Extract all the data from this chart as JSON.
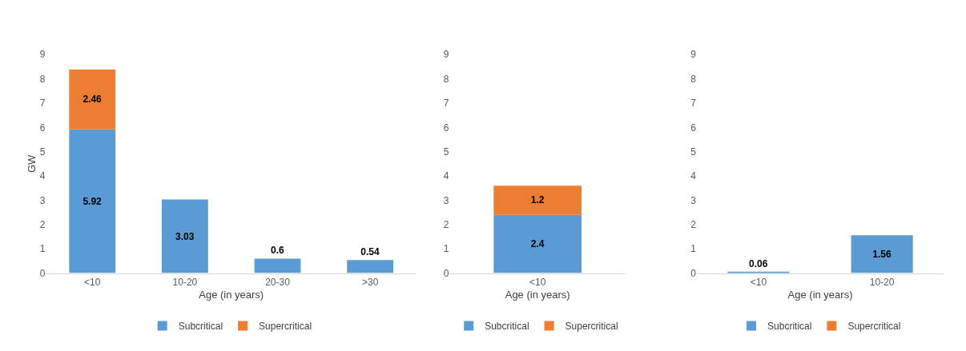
{
  "chart_data": [
    {
      "type": "bar",
      "stacked": true,
      "categories": [
        "<10",
        "10-20",
        "20-30",
        ">30"
      ],
      "xlabel": "Age (in years)",
      "ylabel": "GW",
      "ylim": [
        0,
        9
      ],
      "yticks": [
        0,
        1,
        2,
        3,
        4,
        5,
        6,
        7,
        8,
        9
      ],
      "data_labels": true,
      "legend": "bottom",
      "series": [
        {
          "name": "Subcritical",
          "color": "#5b9bd5",
          "values": [
            5.92,
            3.03,
            0.6,
            0.54
          ]
        },
        {
          "name": "Supercritical",
          "color": "#ed7d31",
          "values": [
            2.46,
            null,
            null,
            null
          ]
        }
      ]
    },
    {
      "type": "bar",
      "stacked": true,
      "categories": [
        "<10"
      ],
      "xlabel": "Age (in years)",
      "ylim": [
        0,
        9
      ],
      "yticks": [
        0,
        1,
        2,
        3,
        4,
        5,
        6,
        7,
        8,
        9
      ],
      "data_labels": true,
      "legend": "bottom",
      "series": [
        {
          "name": "Subcritical",
          "color": "#5b9bd5",
          "values": [
            2.4
          ]
        },
        {
          "name": "Supercritical",
          "color": "#ed7d31",
          "values": [
            1.2
          ]
        }
      ]
    },
    {
      "type": "bar",
      "stacked": true,
      "categories": [
        "<10",
        "10-20"
      ],
      "xlabel": "Age (in years)",
      "ylim": [
        0,
        9
      ],
      "yticks": [
        0,
        1,
        2,
        3,
        4,
        5,
        6,
        7,
        8,
        9
      ],
      "data_labels": true,
      "legend": "bottom",
      "series": [
        {
          "name": "Subcritical",
          "color": "#5b9bd5",
          "values": [
            0.06,
            1.56
          ]
        },
        {
          "name": "Supercritical",
          "color": "#ed7d31",
          "values": [
            null,
            null
          ]
        }
      ]
    }
  ]
}
